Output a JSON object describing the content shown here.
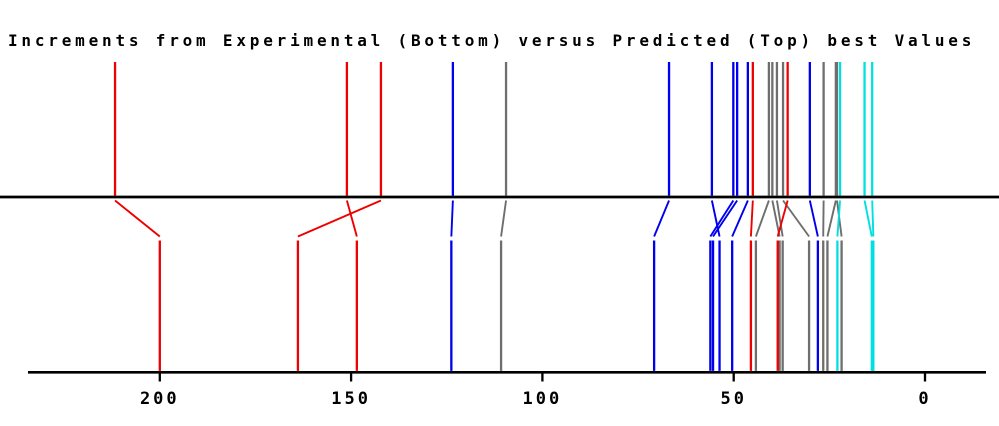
{
  "title": "Increments from Experimental (Bottom) versus Predicted (Top) best Values",
  "colors": {
    "red": "#ee0000",
    "blue": "#0000ee",
    "gray": "#6e6e6e",
    "cyan": "#00e0e0",
    "axis": "#000000"
  },
  "chart_data": {
    "type": "line",
    "subtype": "paired-spectrum-comparison",
    "title": "Increments from Experimental (Bottom) versus Predicted (Top) best Values",
    "top_series": "Predicted",
    "bottom_series": "Experimental",
    "x_reversed": true,
    "xlim": [
      234,
      -16
    ],
    "x_ticks": [
      200,
      150,
      100,
      50,
      0
    ],
    "x_tick_labels": [
      "200",
      "150",
      "100",
      "50",
      "0"
    ],
    "grid": false,
    "pairs": [
      {
        "color": "red",
        "predicted": 211.7,
        "experimental": 200.0
      },
      {
        "color": "red",
        "predicted": 151.1,
        "experimental": 148.5
      },
      {
        "color": "red",
        "predicted": 142.2,
        "experimental": 163.9
      },
      {
        "color": "blue",
        "predicted": 123.4,
        "experimental": 123.8
      },
      {
        "color": "gray",
        "predicted": 109.5,
        "experimental": 110.8
      },
      {
        "color": "blue",
        "predicted": 66.9,
        "experimental": 70.8
      },
      {
        "color": "blue",
        "predicted": 55.7,
        "experimental": 53.7
      },
      {
        "color": "blue",
        "predicted": 50.1,
        "experimental": 56.1
      },
      {
        "color": "blue",
        "predicted": 49.1,
        "experimental": 55.4
      },
      {
        "color": "blue",
        "predicted": 46.3,
        "experimental": 50.4
      },
      {
        "color": "red",
        "predicted": 45.0,
        "experimental": 45.5
      },
      {
        "color": "gray",
        "predicted": 40.8,
        "experimental": 44.2
      },
      {
        "color": "gray",
        "predicted": 39.9,
        "experimental": 38.0
      },
      {
        "color": "gray",
        "predicted": 38.7,
        "experimental": 37.2
      },
      {
        "color": "gray",
        "predicted": 37.1,
        "experimental": 30.3
      },
      {
        "color": "red",
        "predicted": 35.9,
        "experimental": 38.5
      },
      {
        "color": "blue",
        "predicted": 30.1,
        "experimental": 28.0
      },
      {
        "color": "gray",
        "predicted": 26.5,
        "experimental": 26.6
      },
      {
        "color": "gray",
        "predicted": 23.3,
        "experimental": 25.5
      },
      {
        "color": "gray",
        "predicted": 23.0,
        "experimental": 21.8
      },
      {
        "color": "cyan",
        "predicted": 22.2,
        "experimental": 22.9
      },
      {
        "color": "cyan",
        "predicted": 15.8,
        "experimental": 13.9
      },
      {
        "color": "cyan",
        "predicted": 13.8,
        "experimental": 13.5
      }
    ]
  }
}
